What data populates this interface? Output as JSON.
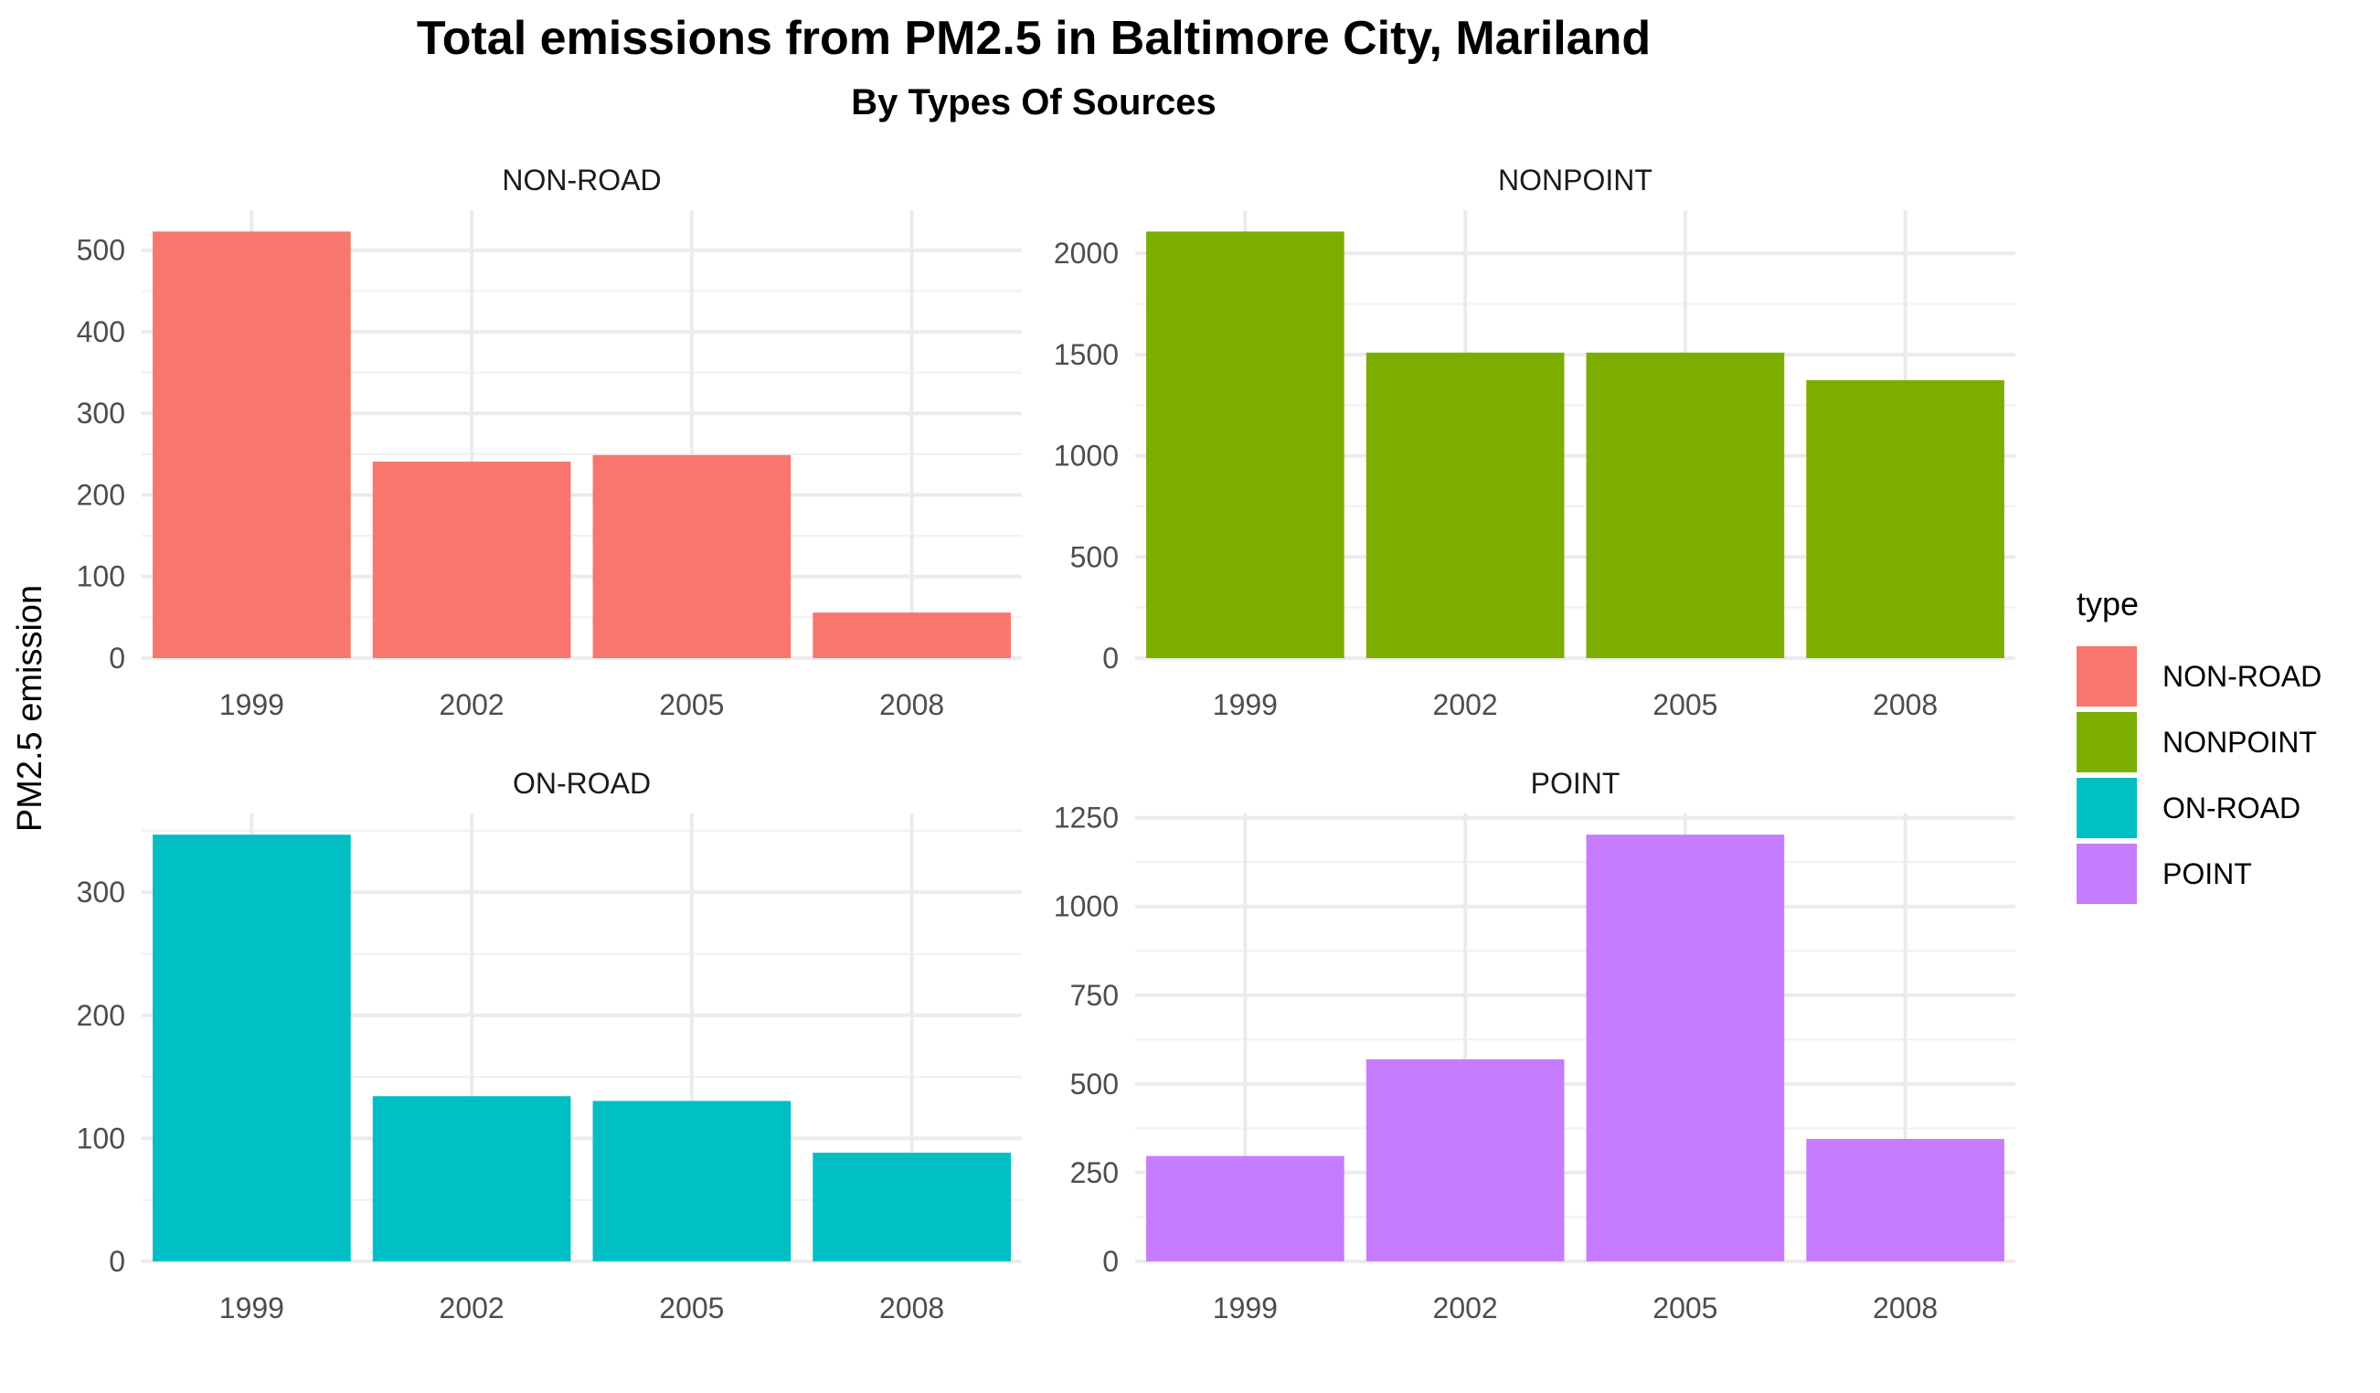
{
  "chart_data": {
    "type": "bar",
    "title": "Total emissions from PM2.5 in Baltimore City, Mariland",
    "subtitle": "By Types Of Sources",
    "ylabel": "PM2.5 emission",
    "xlabel": "",
    "grid": true,
    "legend": {
      "title": "type",
      "placement": "right",
      "entries": [
        "NON-ROAD",
        "NONPOINT",
        "ON-ROAD",
        "POINT"
      ]
    },
    "categories": [
      "1999",
      "2002",
      "2005",
      "2008"
    ],
    "panels": [
      {
        "name": "NON-ROAD",
        "color": "#F8766D",
        "values": [
          522.9,
          240.8,
          248.9,
          55.8
        ],
        "ylim": [
          0,
          549
        ],
        "yticks": [
          "0",
          "100",
          "200",
          "300",
          "400",
          "500"
        ],
        "ytick_values": [
          0,
          100,
          200,
          300,
          400,
          500
        ]
      },
      {
        "name": "NONPOINT",
        "color": "#7CAE00",
        "values": [
          2107.6,
          1509.5,
          1509.5,
          1373.2
        ],
        "ylim": [
          0,
          2213
        ],
        "yticks": [
          "0",
          "500",
          "1000",
          "1500",
          "2000"
        ],
        "ytick_values": [
          0,
          500,
          1000,
          1500,
          2000
        ]
      },
      {
        "name": "ON-ROAD",
        "color": "#00BFC4",
        "values": [
          346.8,
          134.3,
          130.4,
          88.3
        ],
        "ylim": [
          0,
          364
        ],
        "yticks": [
          "0",
          "100",
          "200",
          "300"
        ],
        "ytick_values": [
          0,
          100,
          200,
          300
        ]
      },
      {
        "name": "POINT",
        "color": "#C77CFF",
        "values": [
          296.8,
          569.3,
          1202.5,
          344.98
        ],
        "ylim": [
          0,
          1262
        ],
        "yticks": [
          "0",
          "250",
          "500",
          "750",
          "1000",
          "1250"
        ],
        "ytick_values": [
          0,
          250,
          500,
          750,
          1000,
          1250
        ]
      }
    ]
  }
}
